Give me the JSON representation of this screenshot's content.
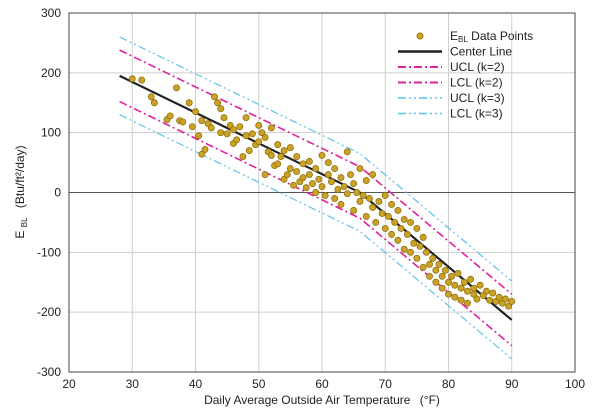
{
  "chart_data": {
    "type": "scatter",
    "xlabel": "Daily Average Outside Air Temperature",
    "xlabel_unit": "(°F)",
    "ylabel_main": "E",
    "ylabel_sub": "BL",
    "ylabel_unit": "(Btu/ft²/day)",
    "xlim": [
      20,
      100
    ],
    "ylim": [
      -300,
      300
    ],
    "x_ticks": [
      "20",
      "30",
      "40",
      "50",
      "60",
      "70",
      "80",
      "90",
      "100"
    ],
    "y_ticks": [
      "300",
      "200",
      "100",
      "0",
      "-100",
      "-200",
      "-300"
    ],
    "grid": true,
    "legend_position": "top-right",
    "colors": {
      "points_fill": "#c9a227",
      "points_stroke": "#8a6a00",
      "center": "#222222",
      "k2": "#e0219a",
      "k3": "#5ec3e6",
      "zero": "#555555",
      "grid": "#cfcfcf"
    },
    "legend": [
      {
        "key": "points",
        "main": "E",
        "sub": "BL",
        "rest": " Data Points"
      },
      {
        "key": "center",
        "main": "Center Line"
      },
      {
        "key": "ucl2",
        "main": "UCL (k=2)"
      },
      {
        "key": "lcl2",
        "main": "LCL (k=2)"
      },
      {
        "key": "ucl3",
        "main": "UCL (k=3)"
      },
      {
        "key": "lcl3",
        "main": "LCL (k=3)"
      }
    ],
    "lines": {
      "center": {
        "x": [
          28,
          66,
          90
        ],
        "y": [
          195,
          0,
          -213
        ]
      },
      "ucl2": {
        "x": [
          28,
          66,
          90
        ],
        "y": [
          238,
          43,
          -170
        ]
      },
      "lcl2": {
        "x": [
          28,
          66,
          90
        ],
        "y": [
          152,
          -43,
          -256
        ]
      },
      "ucl3": {
        "x": [
          28,
          66,
          90
        ],
        "y": [
          260,
          65,
          -148
        ]
      },
      "lcl3": {
        "x": [
          28,
          66,
          90
        ],
        "y": [
          130,
          -65,
          -278
        ]
      }
    },
    "points": [
      [
        30,
        190
      ],
      [
        31.5,
        188
      ],
      [
        33,
        160
      ],
      [
        33.5,
        150
      ],
      [
        35.5,
        122
      ],
      [
        36,
        128
      ],
      [
        37,
        175
      ],
      [
        37.5,
        120
      ],
      [
        38,
        118
      ],
      [
        39,
        150
      ],
      [
        39.5,
        110
      ],
      [
        40,
        135
      ],
      [
        40.5,
        95
      ],
      [
        41,
        120
      ],
      [
        41.5,
        72
      ],
      [
        41,
        64
      ],
      [
        42,
        115
      ],
      [
        42.5,
        108
      ],
      [
        43,
        160
      ],
      [
        43.5,
        150
      ],
      [
        44,
        140
      ],
      [
        44,
        100
      ],
      [
        44.5,
        125
      ],
      [
        45,
        98
      ],
      [
        45.5,
        112
      ],
      [
        46,
        82
      ],
      [
        46,
        105
      ],
      [
        46.5,
        88
      ],
      [
        47,
        110
      ],
      [
        47.5,
        60
      ],
      [
        48,
        125
      ],
      [
        48,
        95
      ],
      [
        48.5,
        70
      ],
      [
        49,
        98
      ],
      [
        49.5,
        80
      ],
      [
        50,
        112
      ],
      [
        50,
        85
      ],
      [
        50.5,
        100
      ],
      [
        51,
        92
      ],
      [
        51,
        30
      ],
      [
        51.5,
        68
      ],
      [
        52,
        108
      ],
      [
        52,
        62
      ],
      [
        52.5,
        45
      ],
      [
        53,
        80
      ],
      [
        53,
        48
      ],
      [
        53.5,
        60
      ],
      [
        54,
        22
      ],
      [
        54,
        70
      ],
      [
        54.5,
        30
      ],
      [
        55,
        75
      ],
      [
        55,
        40
      ],
      [
        55.5,
        12
      ],
      [
        56,
        35
      ],
      [
        56,
        60
      ],
      [
        56.5,
        18
      ],
      [
        57,
        48
      ],
      [
        57,
        25
      ],
      [
        57.5,
        8
      ],
      [
        58,
        30
      ],
      [
        58,
        52
      ],
      [
        58.5,
        15
      ],
      [
        59,
        0
      ],
      [
        59,
        40
      ],
      [
        59.5,
        22
      ],
      [
        60,
        62
      ],
      [
        60,
        10
      ],
      [
        60.5,
        -5
      ],
      [
        61,
        30
      ],
      [
        61,
        50
      ],
      [
        61.5,
        18
      ],
      [
        62,
        40
      ],
      [
        62,
        -10
      ],
      [
        62.5,
        5
      ],
      [
        63,
        25
      ],
      [
        63,
        -20
      ],
      [
        63.5,
        10
      ],
      [
        64,
        68
      ],
      [
        64,
        -2
      ],
      [
        64.5,
        30
      ],
      [
        65,
        15
      ],
      [
        65,
        -30
      ],
      [
        65.5,
        0
      ],
      [
        66,
        40
      ],
      [
        66,
        -15
      ],
      [
        66.5,
        -5
      ],
      [
        67,
        20
      ],
      [
        67,
        -40
      ],
      [
        67.5,
        -10
      ],
      [
        68,
        30
      ],
      [
        68,
        -25
      ],
      [
        68.5,
        -50
      ],
      [
        69,
        -15
      ],
      [
        69.5,
        -35
      ],
      [
        70,
        -5
      ],
      [
        70,
        -60
      ],
      [
        70.5,
        -40
      ],
      [
        71,
        -20
      ],
      [
        71,
        -70
      ],
      [
        71.5,
        -50
      ],
      [
        72,
        -30
      ],
      [
        72,
        -80
      ],
      [
        72.5,
        -60
      ],
      [
        73,
        -45
      ],
      [
        73,
        -95
      ],
      [
        73.5,
        -70
      ],
      [
        74,
        -50
      ],
      [
        74,
        -100
      ],
      [
        74.5,
        -85
      ],
      [
        75,
        -60
      ],
      [
        75,
        -110
      ],
      [
        75.5,
        -90
      ],
      [
        76,
        -75
      ],
      [
        76,
        -125
      ],
      [
        76.5,
        -100
      ],
      [
        77,
        -120
      ],
      [
        77,
        -140
      ],
      [
        77.5,
        -110
      ],
      [
        78,
        -130
      ],
      [
        78,
        -150
      ],
      [
        78.5,
        -120
      ],
      [
        79,
        -140
      ],
      [
        79,
        -160
      ],
      [
        79.5,
        -130
      ],
      [
        80,
        -150
      ],
      [
        80,
        -170
      ],
      [
        80.5,
        -140
      ],
      [
        81,
        -155
      ],
      [
        81,
        -175
      ],
      [
        81.5,
        -135
      ],
      [
        82,
        -160
      ],
      [
        82,
        -180
      ],
      [
        82.5,
        -150
      ],
      [
        83,
        -165
      ],
      [
        83,
        -185
      ],
      [
        83.5,
        -145
      ],
      [
        84,
        -170
      ],
      [
        84,
        -160
      ],
      [
        84.5,
        -178
      ],
      [
        85,
        -155
      ],
      [
        85.5,
        -172
      ],
      [
        86,
        -165
      ],
      [
        86.5,
        -180
      ],
      [
        87,
        -168
      ],
      [
        87.5,
        -182
      ],
      [
        88,
        -175
      ],
      [
        88.5,
        -185
      ],
      [
        89,
        -178
      ],
      [
        89.5,
        -190
      ],
      [
        90,
        -182
      ]
    ]
  }
}
